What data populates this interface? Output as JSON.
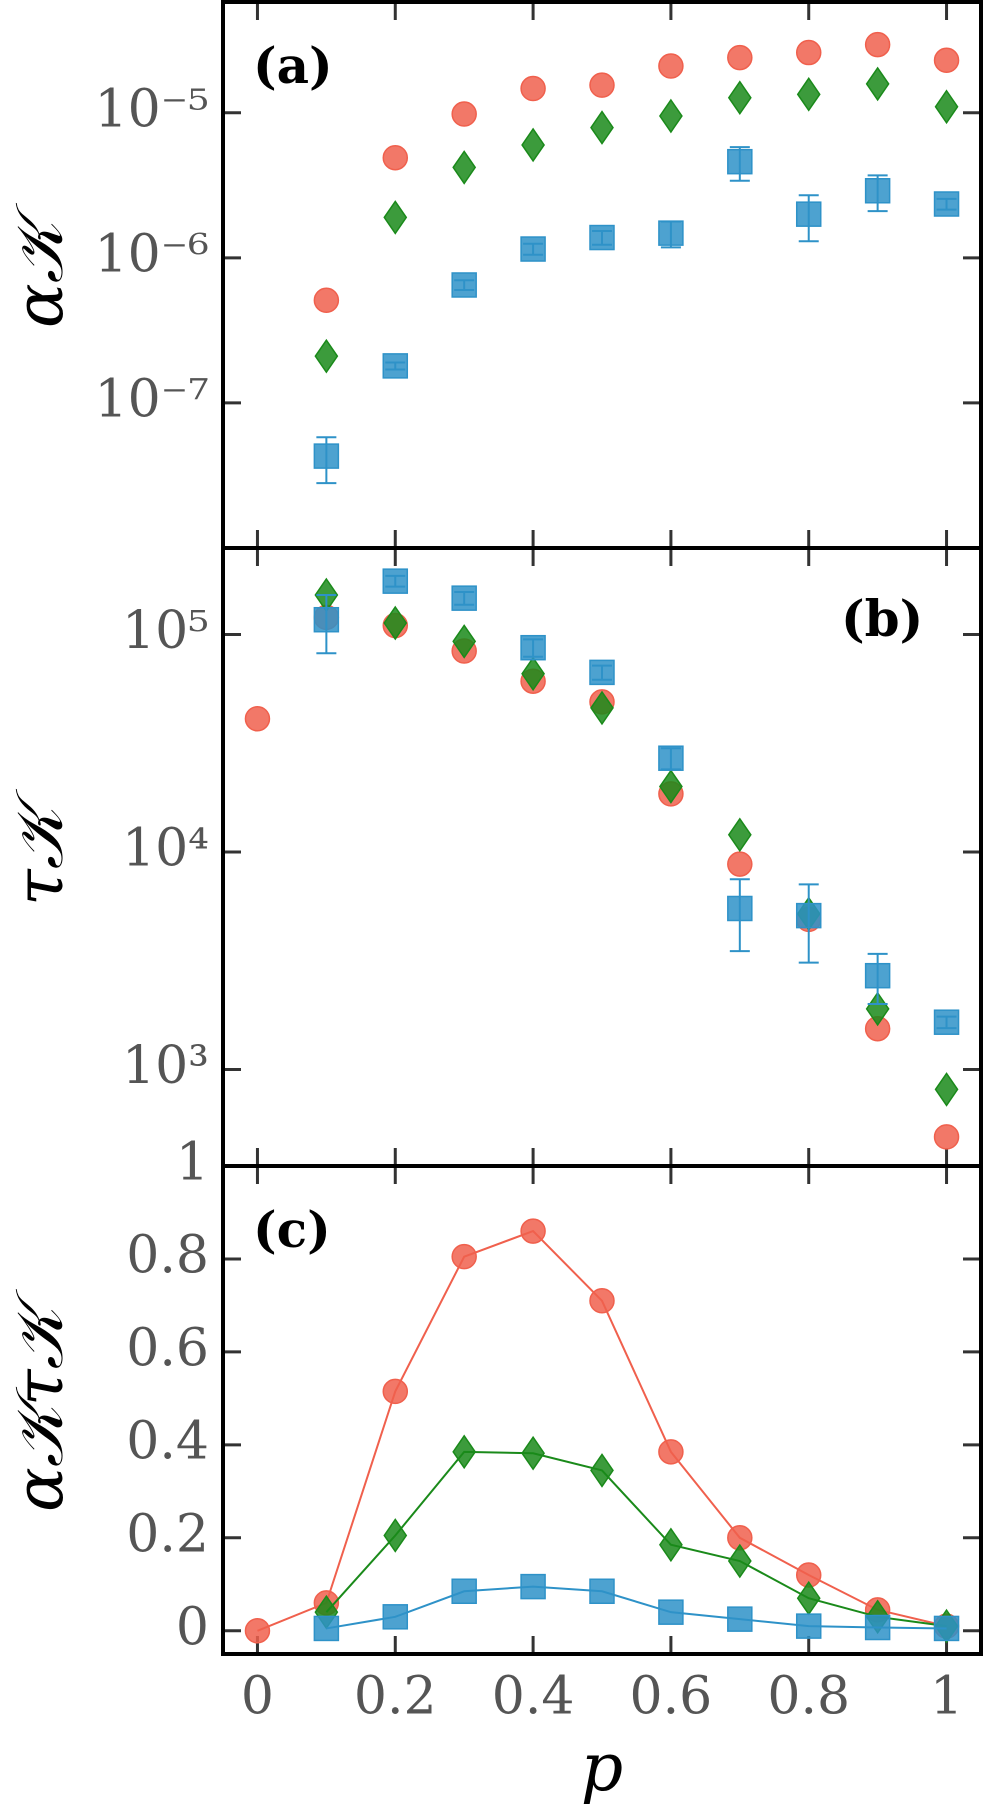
{
  "chart_data": [
    {
      "type": "scatter",
      "panel_label": "(a)",
      "ylabel": "α𝒦",
      "ylog": true,
      "xlim": [
        -0.05,
        1.05
      ],
      "ylim": [
        1e-08,
        5.8e-05
      ],
      "yticks": [
        {
          "value": 1e-07,
          "label": "10⁻⁷"
        },
        {
          "value": 1e-06,
          "label": "10⁻⁶"
        },
        {
          "value": 1e-05,
          "label": "10⁻⁵"
        }
      ],
      "series": [
        {
          "marker": "circle",
          "color": "#f0604d",
          "x": [
            0.1,
            0.2,
            0.3,
            0.4,
            0.5,
            0.6,
            0.7,
            0.8,
            0.9,
            1.0
          ],
          "values": [
            5.1e-07,
            4.9e-06,
            9.8e-06,
            1.47e-05,
            1.55e-05,
            2.1e-05,
            2.4e-05,
            2.6e-05,
            2.95e-05,
            2.3e-05
          ]
        },
        {
          "marker": "diamond",
          "color": "#1a8a1a",
          "x": [
            0.1,
            0.2,
            0.3,
            0.4,
            0.5,
            0.6,
            0.7,
            0.8,
            0.9,
            1.0
          ],
          "values": [
            2.1e-07,
            1.9e-06,
            4.2e-06,
            6e-06,
            7.9e-06,
            9.5e-06,
            1.27e-05,
            1.34e-05,
            1.58e-05,
            1.1e-05
          ]
        },
        {
          "marker": "square",
          "color": "#2e92c8",
          "x": [
            0.1,
            0.2,
            0.3,
            0.4,
            0.5,
            0.6,
            0.7,
            0.8,
            0.9,
            1.0
          ],
          "values": [
            4.3e-08,
            1.8e-07,
            6.5e-07,
            1.15e-06,
            1.38e-06,
            1.48e-06,
            4.6e-06,
            2e-06,
            2.9e-06,
            2.35e-06
          ],
          "errors": [
            1.5e-08,
            1e-08,
            5e-08,
            1e-07,
            1.5e-07,
            3e-07,
            1.2e-06,
            7e-07,
            8e-07,
            2e-07
          ]
        }
      ]
    },
    {
      "type": "scatter",
      "panel_label": "(b)",
      "ylabel": "τ𝒦",
      "ylog": true,
      "xlim": [
        -0.05,
        1.05
      ],
      "ylim": [
        360,
        250000
      ],
      "yticks": [
        {
          "value": 1000,
          "label": "10³"
        },
        {
          "value": 10000,
          "label": "10⁴"
        },
        {
          "value": 100000,
          "label": "10⁵"
        }
      ],
      "series": [
        {
          "marker": "circle",
          "color": "#f0604d",
          "x": [
            0,
            0.1,
            0.2,
            0.3,
            0.4,
            0.5,
            0.6,
            0.7,
            0.8,
            0.9,
            1.0
          ],
          "values": [
            41000,
            120000,
            110000,
            84000,
            61000,
            49000,
            18500,
            8800,
            4900,
            1540,
            490
          ]
        },
        {
          "marker": "diamond",
          "color": "#1a8a1a",
          "x": [
            0.1,
            0.2,
            0.3,
            0.4,
            0.5,
            0.6,
            0.7,
            0.8,
            0.9,
            1.0
          ],
          "values": [
            152000,
            113000,
            93000,
            66000,
            46000,
            20000,
            12000,
            5200,
            1900,
            810
          ]
        },
        {
          "marker": "square",
          "color": "#2e92c8",
          "x": [
            0.1,
            0.2,
            0.3,
            0.4,
            0.5,
            0.6,
            0.7,
            0.8,
            0.9,
            1.0
          ],
          "values": [
            117000,
            176000,
            147000,
            87000,
            67000,
            27000,
            5500,
            5100,
            2700,
            1650
          ],
          "errors": [
            35000,
            10000,
            10000,
            8000,
            5000,
            3000,
            2000,
            2000,
            700,
            100
          ]
        }
      ]
    },
    {
      "type": "line",
      "panel_label": "(c)",
      "ylabel": "α𝒦τ𝒦",
      "xlabel": "p",
      "ylog": false,
      "xlim": [
        -0.05,
        1.05
      ],
      "ylim": [
        -0.05,
        1.0
      ],
      "xticks": [
        0,
        0.2,
        0.4,
        0.6,
        0.8,
        1
      ],
      "yticks": [
        0,
        0.2,
        0.4,
        0.6,
        0.8,
        1
      ],
      "series": [
        {
          "marker": "circle",
          "color": "#f0604d",
          "x": [
            0,
            0.1,
            0.2,
            0.3,
            0.4,
            0.5,
            0.6,
            0.7,
            0.8,
            0.9,
            1.0
          ],
          "values": [
            0,
            0.06,
            0.515,
            0.805,
            0.86,
            0.71,
            0.385,
            0.2,
            0.12,
            0.045,
            0.01
          ]
        },
        {
          "marker": "diamond",
          "color": "#1a8a1a",
          "x": [
            0.1,
            0.2,
            0.3,
            0.4,
            0.5,
            0.6,
            0.7,
            0.8,
            0.9,
            1.0
          ],
          "values": [
            0.04,
            0.205,
            0.385,
            0.382,
            0.345,
            0.185,
            0.15,
            0.07,
            0.03,
            0.01
          ]
        },
        {
          "marker": "square",
          "color": "#2e92c8",
          "x": [
            0.1,
            0.2,
            0.3,
            0.4,
            0.5,
            0.6,
            0.7,
            0.8,
            0.9,
            1.0
          ],
          "values": [
            0.005,
            0.03,
            0.085,
            0.095,
            0.085,
            0.04,
            0.025,
            0.01,
            0.007,
            0.005
          ]
        }
      ]
    }
  ]
}
